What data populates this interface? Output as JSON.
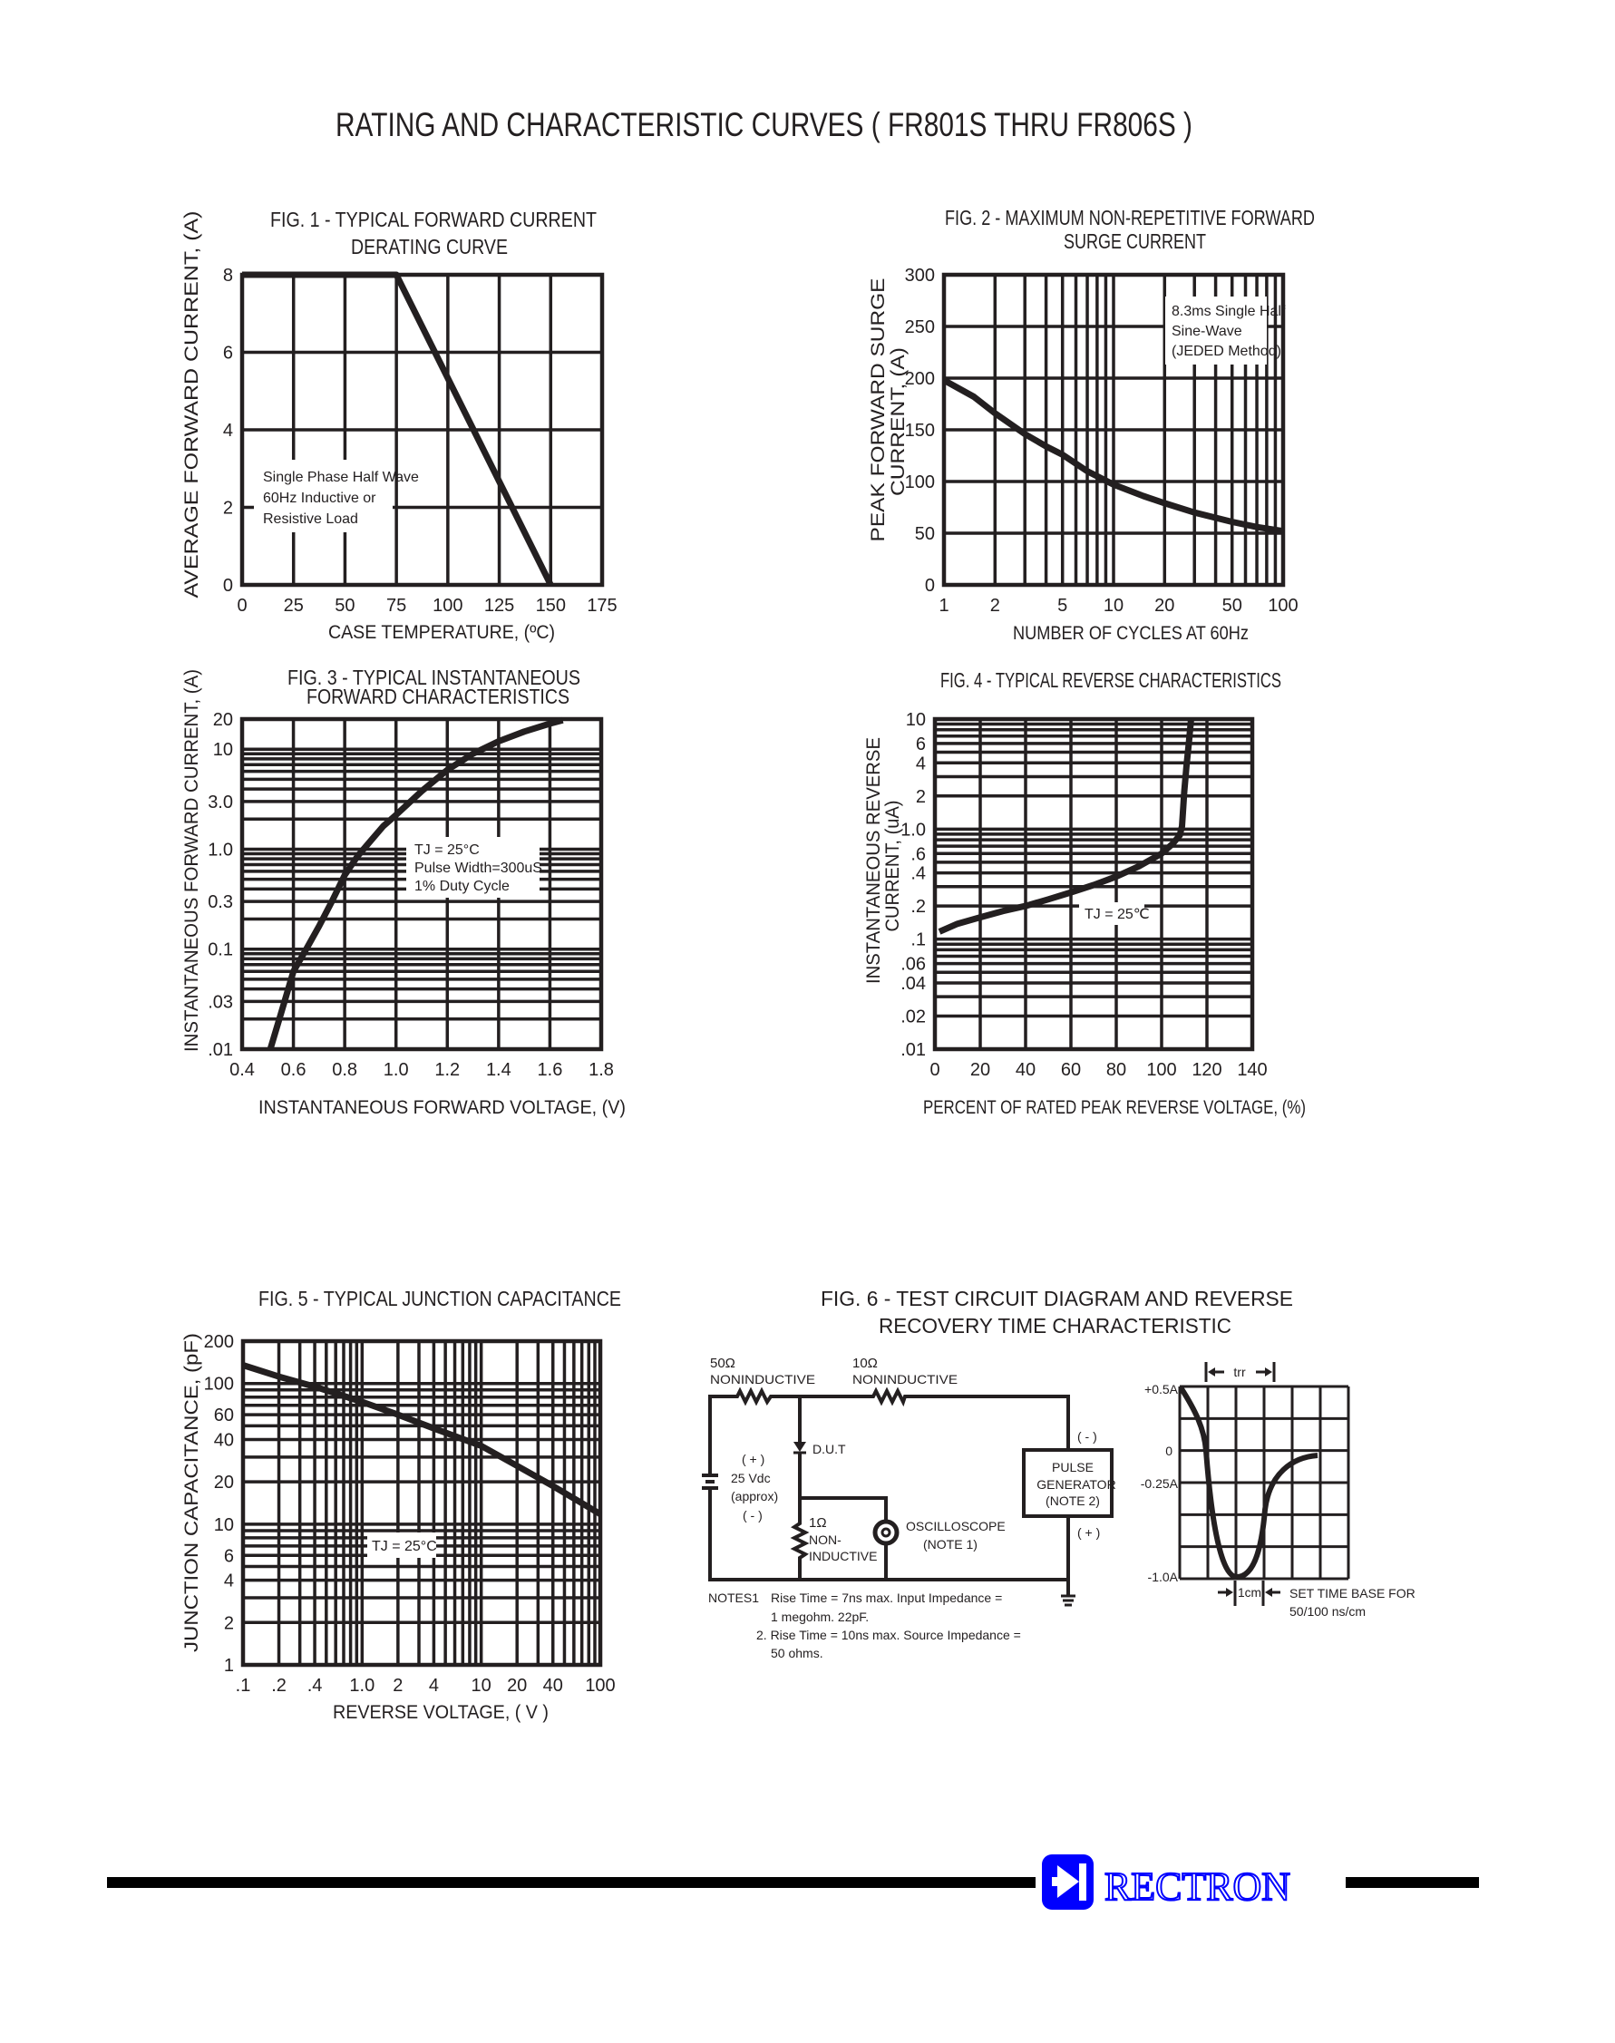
{
  "header": {
    "title": "RATING AND CHARACTERISTIC CURVES ( FR801S THRU FR806S )"
  },
  "colors": {
    "ink": "#231f20",
    "brand": "#0000ff",
    "background": "#ffffff"
  },
  "chart_data": [
    {
      "type": "line",
      "title": [
        "FIG. 1 - TYPICAL FORWARD CURRENT",
        "DERATING CURVE"
      ],
      "xlabel": "CASE TEMPERATURE, (ºC)",
      "ylabel": [
        "AVERAGE FORWARD CURRENT, (A)"
      ],
      "x_scale": "linear",
      "y_scale": "linear",
      "xlim": [
        0,
        175
      ],
      "ylim": [
        0,
        8
      ],
      "grid": true,
      "x_ticks": [
        "0",
        "25",
        "50",
        "75",
        "100",
        "125",
        "150",
        "175"
      ],
      "y_ticks": [
        "0",
        "2",
        "4",
        "6",
        "8"
      ],
      "annotation": [
        "Single Phase Half Wave",
        "60Hz Inductive or",
        "Resistive Load"
      ],
      "series": [
        {
          "points": [
            [
              0,
              8
            ],
            [
              75,
              8
            ],
            [
              150,
              0
            ]
          ]
        }
      ]
    },
    {
      "type": "line",
      "title": [
        "FIG. 2 - MAXIMUM NON-REPETITIVE FORWARD",
        "SURGE CURRENT"
      ],
      "xlabel": "NUMBER OF CYCLES AT 60Hz",
      "ylabel": [
        "PEAK FORWARD SURGE",
        "CURRENT, (A)"
      ],
      "x_scale": "log",
      "y_scale": "linear",
      "xlim": [
        1,
        100
      ],
      "ylim": [
        0,
        300
      ],
      "grid": true,
      "x_ticks": [
        "1",
        "2",
        "5",
        "10",
        "20",
        "50",
        "100"
      ],
      "y_ticks": [
        "0",
        "50",
        "100",
        "150",
        "200",
        "250",
        "300"
      ],
      "annotation": [
        "8.3ms Single Half",
        "Sine-Wave",
        "(JEDED Method)"
      ],
      "series": [
        {
          "points": [
            [
              1,
              198
            ],
            [
              1.5,
              182
            ],
            [
              2,
              166
            ],
            [
              3,
              146
            ],
            [
              4,
              134
            ],
            [
              5,
              126
            ],
            [
              7,
              110
            ],
            [
              10,
              97
            ],
            [
              15,
              86
            ],
            [
              20,
              79
            ],
            [
              30,
              70
            ],
            [
              50,
              61
            ],
            [
              70,
              56
            ],
            [
              100,
              52
            ]
          ]
        }
      ]
    },
    {
      "type": "line",
      "title": [
        "FIG. 3 - TYPICAL INSTANTANEOUS",
        "FORWARD CHARACTERISTICS"
      ],
      "xlabel": "INSTANTANEOUS FORWARD VOLTAGE, (V)",
      "ylabel": [
        "INSTANTANEOUS FORWARD CURRENT, (A)"
      ],
      "x_scale": "linear",
      "y_scale": "log",
      "xlim": [
        0.4,
        1.8
      ],
      "ylim": [
        0.01,
        20
      ],
      "grid": true,
      "x_ticks": [
        "0.4",
        "0.6",
        "0.8",
        "1.0",
        "1.2",
        "1.4",
        "1.6",
        "1.8"
      ],
      "y_ticks": [
        ".01",
        ".03",
        "0.1",
        "0.3",
        "1.0",
        "3.0",
        "10",
        "20"
      ],
      "annotation": [
        "TJ = 25°C",
        "Pulse Width=300uS",
        "1% Duty Cycle"
      ],
      "series": [
        {
          "points": [
            [
              0.51,
              0.01
            ],
            [
              0.55,
              0.022
            ],
            [
              0.6,
              0.06
            ],
            [
              0.65,
              0.1
            ],
            [
              0.7,
              0.17
            ],
            [
              0.75,
              0.3
            ],
            [
              0.8,
              0.55
            ],
            [
              0.85,
              0.85
            ],
            [
              0.9,
              1.2
            ],
            [
              0.95,
              1.7
            ],
            [
              1.0,
              2.2
            ],
            [
              1.1,
              3.8
            ],
            [
              1.2,
              6.2
            ],
            [
              1.3,
              9
            ],
            [
              1.4,
              12
            ],
            [
              1.5,
              15
            ],
            [
              1.6,
              18
            ],
            [
              1.65,
              19.5
            ]
          ]
        }
      ]
    },
    {
      "type": "line",
      "title": [
        "FIG. 4 - TYPICAL REVERSE CHARACTERISTICS"
      ],
      "xlabel": "PERCENT OF RATED PEAK REVERSE VOLTAGE, (%)",
      "ylabel": [
        "INSTANTANEOUS REVERSE",
        "CURRENT, (uA)"
      ],
      "x_scale": "linear",
      "y_scale": "log",
      "xlim": [
        0,
        140
      ],
      "ylim": [
        0.01,
        10
      ],
      "grid": true,
      "x_ticks": [
        "0",
        "20",
        "40",
        "60",
        "80",
        "100",
        "120",
        "140"
      ],
      "y_ticks": [
        ".01",
        ".02",
        ".04",
        ".06",
        ".1",
        ".2",
        ".4",
        ".6",
        "1.0",
        "2",
        "4",
        "6",
        "10"
      ],
      "annotation": [
        "TJ = 25℃"
      ],
      "series": [
        {
          "points": [
            [
              2,
              0.117
            ],
            [
              10,
              0.138
            ],
            [
              20,
              0.158
            ],
            [
              30,
              0.18
            ],
            [
              40,
              0.2
            ],
            [
              50,
              0.23
            ],
            [
              60,
              0.266
            ],
            [
              70,
              0.31
            ],
            [
              80,
              0.37
            ],
            [
              90,
              0.46
            ],
            [
              100,
              0.6
            ],
            [
              105,
              0.74
            ],
            [
              108,
              0.88
            ],
            [
              109,
              1.06
            ],
            [
              110,
              2.2
            ],
            [
              111,
              3.8
            ],
            [
              112,
              6
            ],
            [
              113,
              10
            ]
          ]
        }
      ]
    },
    {
      "type": "line",
      "title": [
        "FIG. 5 - TYPICAL JUNCTION CAPACITANCE"
      ],
      "xlabel": "REVERSE VOLTAGE, ( V )",
      "ylabel": [
        "JUNCTION CAPACITANCE, (pF)"
      ],
      "x_scale": "log",
      "y_scale": "log",
      "xlim": [
        0.1,
        100
      ],
      "ylim": [
        1,
        200
      ],
      "grid": true,
      "x_ticks": [
        ".1",
        ".2",
        ".4",
        "1.0",
        "2",
        "4",
        "10",
        "20",
        "40",
        "100"
      ],
      "y_ticks": [
        "1",
        "2",
        "4",
        "6",
        "10",
        "20",
        "40",
        "60",
        "100",
        "200"
      ],
      "annotation": [
        "TJ = 25°C"
      ],
      "series": [
        {
          "points": [
            [
              0.1,
              135
            ],
            [
              0.2,
              112
            ],
            [
              0.4,
              95
            ],
            [
              1,
              74
            ],
            [
              2,
              60
            ],
            [
              4,
              48
            ],
            [
              10,
              36
            ],
            [
              20,
              26
            ],
            [
              40,
              18.7
            ],
            [
              100,
              11.8
            ]
          ]
        }
      ]
    }
  ],
  "fig6": {
    "title": [
      "FIG. 6 - TEST CIRCUIT DIAGRAM  AND REVERSE",
      "RECOVERY TIME CHARACTERISTIC"
    ],
    "circuit": {
      "r1_value": "50Ω",
      "r1_type": "NONINDUCTIVE",
      "r2_value": "10Ω",
      "r2_type": "NONINDUCTIVE",
      "battery_plus": "( + )",
      "battery_voltage": "25 Vdc",
      "battery_approx": "(approx)",
      "battery_minus": "( - )",
      "dut": "D.U.T",
      "r3_value": "1Ω",
      "r3_type_1": "NON-",
      "r3_type_2": "INDUCTIVE",
      "scope": "OSCILLOSCOPE",
      "scope_note": "(NOTE 1)",
      "pulse_minus": "( - )",
      "pulse_plus": "( + )",
      "pulse_1": "PULSE",
      "pulse_2": "GENERATOR",
      "pulse_3": "(NOTE 2)"
    },
    "notes": {
      "label": "NOTES1",
      "n1a": "Rise Time = 7ns max. Input Impedance =",
      "n1b": "1 megohm. 22pF.",
      "n2a": "2. Rise Time = 10ns max. Source Impedance =",
      "n2b": "50 ohms."
    },
    "waveform": {
      "y_labels": [
        "+0.5A",
        "0",
        "-0.25A",
        "-1.0A"
      ],
      "trr": "trr",
      "cm": "1cm",
      "time_base_1": "SET TIME BASE FOR",
      "time_base_2": "50/100 ns/cm"
    }
  },
  "footer": {
    "logo_text": "RECTRON",
    "logo_icon": "diode-icon"
  }
}
